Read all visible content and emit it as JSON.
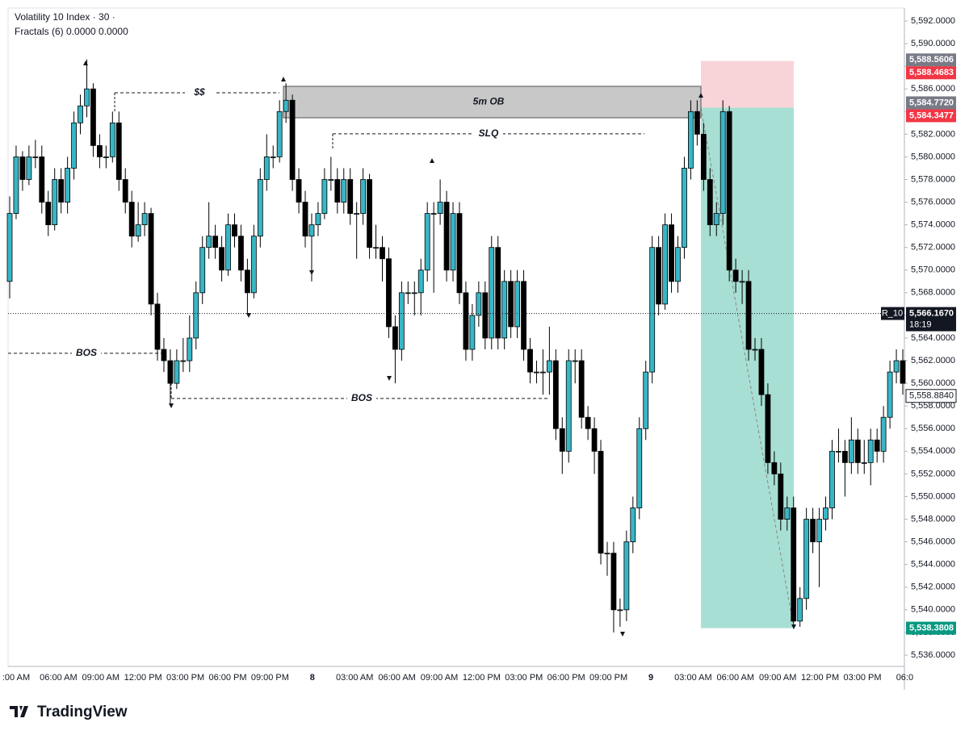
{
  "header": {
    "title": "Volatility 10 Index · 30 ·",
    "indicator": "Fractals (6) 0.0000 0.0000"
  },
  "footer": {
    "brand": "TradingView"
  },
  "chart_data": {
    "type": "candlestick",
    "up_color": "#38b6c6",
    "down_color": "#000000",
    "ylim": [
      5535,
      5593.14
    ],
    "yticks": [
      {
        "value": 5536,
        "label": "5,536.0000"
      },
      {
        "value": 5538,
        "label": "5,538.0000"
      },
      {
        "value": 5540,
        "label": "5,540.0000"
      },
      {
        "value": 5542,
        "label": "5,542.0000"
      },
      {
        "value": 5544,
        "label": "5,544.0000"
      },
      {
        "value": 5546,
        "label": "5,546.0000"
      },
      {
        "value": 5548,
        "label": "5,548.0000"
      },
      {
        "value": 5550,
        "label": "5,550.0000"
      },
      {
        "value": 5552,
        "label": "5,552.0000"
      },
      {
        "value": 5554,
        "label": "5,554.0000"
      },
      {
        "value": 5556,
        "label": "5,556.0000"
      },
      {
        "value": 5558,
        "label": "5,558.0000"
      },
      {
        "value": 5560,
        "label": "5,560.0000"
      },
      {
        "value": 5562,
        "label": "5,562.0000"
      },
      {
        "value": 5564,
        "label": "5,564.0000"
      },
      {
        "value": 5566,
        "label": "5,566.0000"
      },
      {
        "value": 5568,
        "label": "5,568.0000"
      },
      {
        "value": 5570,
        "label": "5,570.0000"
      },
      {
        "value": 5572,
        "label": "5,572.0000"
      },
      {
        "value": 5574,
        "label": "5,574.0000"
      },
      {
        "value": 5576,
        "label": "5,576.0000"
      },
      {
        "value": 5578,
        "label": "5,578.0000"
      },
      {
        "value": 5580,
        "label": "5,580.0000"
      },
      {
        "value": 5582,
        "label": "5,582.0000"
      },
      {
        "value": 5584,
        "label": "5,584.0000"
      },
      {
        "value": 5586,
        "label": "5,586.0000"
      },
      {
        "value": 5588,
        "label": "5,588.0000"
      },
      {
        "value": 5590,
        "label": "5,590.0000"
      },
      {
        "value": 5592,
        "label": "5,592.0000"
      }
    ],
    "x_labels": [
      ":00 AM",
      "06:00 AM",
      "09:00 AM",
      "12:00 PM",
      "03:00 PM",
      "06:00 PM",
      "09:00 PM",
      "8",
      "03:00 AM",
      "06:00 AM",
      "09:00 AM",
      "12:00 PM",
      "03:00 PM",
      "06:00 PM",
      "09:00 PM",
      "9",
      "03:00 AM",
      "06:00 AM",
      "09:00 AM",
      "12:00 PM",
      "03:00 PM",
      "06:0"
    ],
    "ohlc": [
      [
        5569,
        5576.5,
        5567.5,
        5575
      ],
      [
        5575,
        5581,
        5574.5,
        5580
      ],
      [
        5580,
        5580.5,
        5577,
        5578
      ],
      [
        5578,
        5581,
        5577.5,
        5580
      ],
      [
        5580,
        5581.5,
        5579,
        5580
      ],
      [
        5580,
        5581,
        5575,
        5576
      ],
      [
        5576,
        5577,
        5573,
        5574
      ],
      [
        5574,
        5579,
        5573.5,
        5578
      ],
      [
        5578,
        5579,
        5575,
        5576
      ],
      [
        5576,
        5580,
        5575,
        5579
      ],
      [
        5579,
        5584,
        5578,
        5583
      ],
      [
        5583,
        5585.5,
        5582,
        5584.5
      ],
      [
        5584.5,
        5588.6,
        5583.5,
        5586
      ],
      [
        5586,
        5586.5,
        5580,
        5581
      ],
      [
        5581,
        5582,
        5579,
        5580
      ],
      [
        5580,
        5581,
        5579,
        5580
      ],
      [
        5580,
        5584,
        5579.5,
        5583
      ],
      [
        5583,
        5584,
        5577,
        5578
      ],
      [
        5578,
        5579,
        5575,
        5576
      ],
      [
        5576,
        5577,
        5572,
        5573
      ],
      [
        5573,
        5576,
        5572.5,
        5574
      ],
      [
        5574,
        5576,
        5573,
        5575
      ],
      [
        5575,
        5575.5,
        5566,
        5567
      ],
      [
        5567,
        5568,
        5562,
        5563
      ],
      [
        5563,
        5564,
        5561,
        5562
      ],
      [
        5562,
        5563,
        5558,
        5560
      ],
      [
        5560,
        5563,
        5559.5,
        5562
      ],
      [
        5562,
        5564,
        5561,
        5562
      ],
      [
        5562,
        5566,
        5561,
        5564
      ],
      [
        5564,
        5569,
        5563,
        5568
      ],
      [
        5568,
        5573,
        5567,
        5572
      ],
      [
        5572,
        5576,
        5571,
        5573
      ],
      [
        5573,
        5574,
        5571,
        5572
      ],
      [
        5572,
        5573,
        5569,
        5570
      ],
      [
        5570,
        5575,
        5569.5,
        5574
      ],
      [
        5574,
        5575,
        5572,
        5573
      ],
      [
        5573,
        5574,
        5569,
        5570
      ],
      [
        5570,
        5571,
        5566,
        5568
      ],
      [
        5568,
        5574,
        5567.5,
        5573
      ],
      [
        5573,
        5579,
        5572,
        5578
      ],
      [
        5578,
        5582,
        5577,
        5580
      ],
      [
        5580,
        5581,
        5579,
        5580
      ],
      [
        5580,
        5585,
        5579.5,
        5584
      ],
      [
        5584,
        5586.5,
        5583,
        5585
      ],
      [
        5585,
        5585.5,
        5577,
        5578
      ],
      [
        5578,
        5579,
        5575,
        5576
      ],
      [
        5576,
        5577,
        5572,
        5573
      ],
      [
        5573,
        5575,
        5569,
        5574
      ],
      [
        5574,
        5576,
        5573,
        5575
      ],
      [
        5575,
        5579,
        5574.5,
        5578
      ],
      [
        5578,
        5580,
        5577,
        5578
      ],
      [
        5578,
        5579,
        5575,
        5576
      ],
      [
        5576,
        5579,
        5575,
        5578
      ],
      [
        5578,
        5579,
        5574,
        5575
      ],
      [
        5575,
        5576,
        5571,
        5575
      ],
      [
        5575,
        5579,
        5574,
        5578
      ],
      [
        5578,
        5578.5,
        5571,
        5572
      ],
      [
        5572,
        5574,
        5571,
        5572
      ],
      [
        5572,
        5573,
        5569,
        5571
      ],
      [
        5571,
        5572,
        5564,
        5565
      ],
      [
        5565,
        5566,
        5560,
        5563
      ],
      [
        5563,
        5569,
        5562,
        5568
      ],
      [
        5568,
        5569,
        5567,
        5568
      ],
      [
        5568,
        5569,
        5566,
        5568
      ],
      [
        5568,
        5571,
        5566,
        5570
      ],
      [
        5570,
        5576,
        5569,
        5575
      ],
      [
        5575,
        5576,
        5568,
        5575
      ],
      [
        5575,
        5578,
        5574,
        5576
      ],
      [
        5576,
        5577,
        5569,
        5570
      ],
      [
        5570,
        5576,
        5569,
        5575
      ],
      [
        5575,
        5576,
        5567,
        5568
      ],
      [
        5568,
        5569,
        5562,
        5563
      ],
      [
        5563,
        5567,
        5562,
        5566
      ],
      [
        5566,
        5569,
        5565,
        5568
      ],
      [
        5568,
        5569,
        5563,
        5564
      ],
      [
        5564,
        5573,
        5563,
        5572
      ],
      [
        5572,
        5573,
        5563,
        5564
      ],
      [
        5564,
        5570,
        5563,
        5569
      ],
      [
        5569,
        5570,
        5564,
        5565
      ],
      [
        5565,
        5570,
        5564,
        5569
      ],
      [
        5569,
        5570,
        5562,
        5563
      ],
      [
        5563,
        5564,
        5560,
        5561
      ],
      [
        5561,
        5562,
        5560,
        5561
      ],
      [
        5561,
        5563,
        5559,
        5561
      ],
      [
        5561,
        5565,
        5559,
        5562
      ],
      [
        5562,
        5563,
        5555,
        5556
      ],
      [
        5556,
        5557,
        5552,
        5554
      ],
      [
        5554,
        5563,
        5553,
        5562
      ],
      [
        5562,
        5563,
        5560,
        5562
      ],
      [
        5562,
        5563,
        5556,
        5557
      ],
      [
        5557,
        5558,
        5555,
        5556
      ],
      [
        5556,
        5557,
        5552,
        5554
      ],
      [
        5554,
        5555,
        5544,
        5545
      ],
      [
        5545,
        5546,
        5543,
        5545
      ],
      [
        5545,
        5546,
        5538,
        5540
      ],
      [
        5540,
        5541,
        5538.5,
        5540
      ],
      [
        5540,
        5547,
        5539,
        5546
      ],
      [
        5546,
        5550,
        5545,
        5549
      ],
      [
        5549,
        5557,
        5548,
        5556
      ],
      [
        5556,
        5562,
        5555,
        5561
      ],
      [
        5561,
        5573,
        5560,
        5572
      ],
      [
        5572,
        5573,
        5566,
        5567
      ],
      [
        5567,
        5575,
        5566.5,
        5574
      ],
      [
        5574,
        5575,
        5568,
        5569
      ],
      [
        5569,
        5573,
        5568,
        5572
      ],
      [
        5572,
        5580,
        5571,
        5579
      ],
      [
        5579,
        5585,
        5578,
        5584
      ],
      [
        5584,
        5585,
        5581,
        5582
      ],
      [
        5582,
        5583,
        5577,
        5578
      ],
      [
        5578,
        5579,
        5573,
        5574
      ],
      [
        5574,
        5576,
        5573,
        5575
      ],
      [
        5575,
        5585,
        5574,
        5584
      ],
      [
        5584,
        5584.5,
        5569,
        5570
      ],
      [
        5570,
        5571,
        5568,
        5569
      ],
      [
        5569,
        5570,
        5567,
        5569
      ],
      [
        5569,
        5570,
        5562,
        5563
      ],
      [
        5563,
        5564,
        5562,
        5563
      ],
      [
        5563,
        5564,
        5558,
        5559
      ],
      [
        5559,
        5560,
        5552,
        5553
      ],
      [
        5553,
        5554,
        5551,
        5552
      ],
      [
        5552,
        5553,
        5547,
        5548
      ],
      [
        5548,
        5550,
        5547,
        5549
      ],
      [
        5549,
        5550,
        5538.5,
        5539
      ],
      [
        5539,
        5542,
        5538.5,
        5541
      ],
      [
        5541,
        5549,
        5540,
        5548
      ],
      [
        5548,
        5549,
        5545,
        5546
      ],
      [
        5546,
        5549,
        5542,
        5548
      ],
      [
        5548,
        5550,
        5547,
        5549
      ],
      [
        5549,
        5555,
        5548,
        5554
      ],
      [
        5554,
        5556,
        5553,
        5554
      ],
      [
        5554,
        5555,
        5550,
        5553
      ],
      [
        5553,
        5557,
        5552,
        5555
      ],
      [
        5555,
        5556,
        5552,
        5553
      ],
      [
        5553,
        5555,
        5552,
        5553
      ],
      [
        5553,
        5556,
        5551,
        5555
      ],
      [
        5555,
        5556,
        5553,
        5554
      ],
      [
        5554,
        5558,
        5553,
        5557
      ],
      [
        5557,
        5562,
        5556,
        5561
      ],
      [
        5561,
        5563,
        5560,
        5562
      ],
      [
        5562,
        5563,
        5559,
        5560
      ]
    ],
    "ob_zone": {
      "text": "5m OB",
      "range": [
        5583.45,
        5586.23
      ]
    },
    "annotations": [
      {
        "text": "$$",
        "level": 5585.66
      },
      {
        "text": "SLQ",
        "level": 5582.03
      },
      {
        "text": "BOS",
        "level": 5562.65
      },
      {
        "text": "BOS",
        "level": 5558.66
      }
    ],
    "current_price": {
      "value": 5566.167,
      "label": "5,566.1670",
      "countdown": "18:19",
      "symbol": "R_10"
    },
    "price_badges": [
      {
        "value": 5588.5606,
        "label": "5,588.5606",
        "color": "#787b86"
      },
      {
        "value": 5588.4683,
        "label": "5,588.4683",
        "color": "#f23645"
      },
      {
        "value": 5584.772,
        "label": "5,584.7720",
        "color": "#787b86"
      },
      {
        "value": 5584.3477,
        "label": "5,584.3477",
        "color": "#f23645"
      },
      {
        "value": 5558.884,
        "label": "5,558.8840",
        "color": "#ffffff"
      },
      {
        "value": 5538.3808,
        "label": "5,538.3808",
        "color": "#089981"
      }
    ]
  }
}
